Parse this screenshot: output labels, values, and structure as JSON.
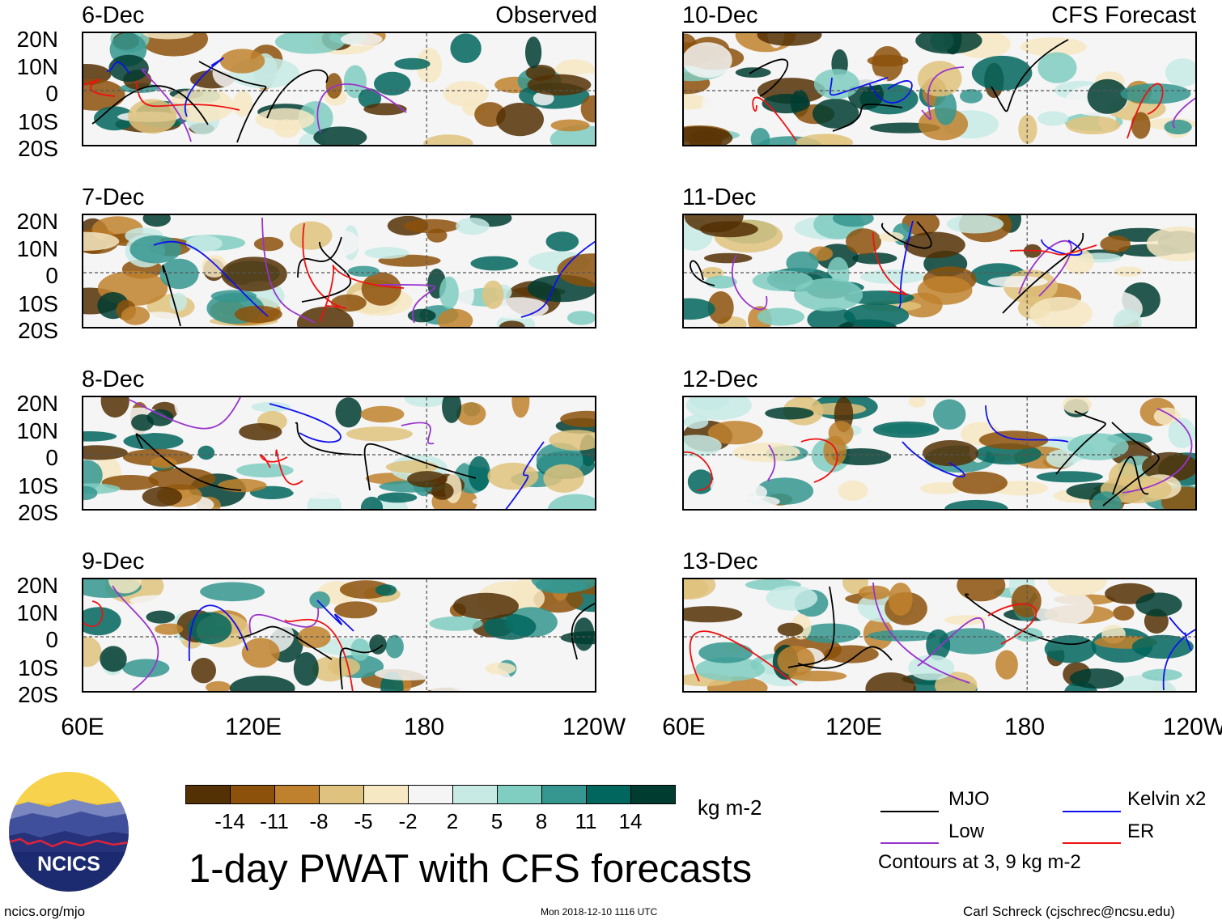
{
  "corner_left": "Observed",
  "corner_right": "CFS Forecast",
  "panels_left": [
    "6-Dec",
    "7-Dec",
    "8-Dec",
    "9-Dec"
  ],
  "panels_right": [
    "10-Dec",
    "11-Dec",
    "12-Dec",
    "13-Dec"
  ],
  "lat_labels": [
    "20N",
    "10N",
    "0",
    "10S",
    "20S"
  ],
  "lon_labels": [
    "60E",
    "120E",
    "180",
    "120W"
  ],
  "colorbar": {
    "colors": [
      "#543005",
      "#8c510a",
      "#bf812d",
      "#dfc27d",
      "#f6e8c3",
      "#f5f5f5",
      "#c7eae5",
      "#80cdc1",
      "#35978f",
      "#01665e",
      "#003c30"
    ],
    "ticks": [
      "-14",
      "-11",
      "-8",
      "-5",
      "-2",
      "2",
      "5",
      "8",
      "11",
      "14"
    ],
    "units": "kg m-2"
  },
  "legend": {
    "mjo": "MJO",
    "mjo_color": "#000000",
    "low": "Low",
    "low_color": "#9933cc",
    "kelvin": "Kelvin x2",
    "kelvin_color": "#1010ee",
    "er": "ER",
    "er_color": "#ee1111",
    "note": "Contours at 3, 9 kg m-2"
  },
  "title": "1-day PWAT with CFS forecasts",
  "logo_text": "NCICS",
  "footer_left": "ncics.org/mjo",
  "footer_center": "Mon 2018-12-10 1116 UTC",
  "footer_right": "Carl Schreck (cjschrec@ncsu.edu)"
}
